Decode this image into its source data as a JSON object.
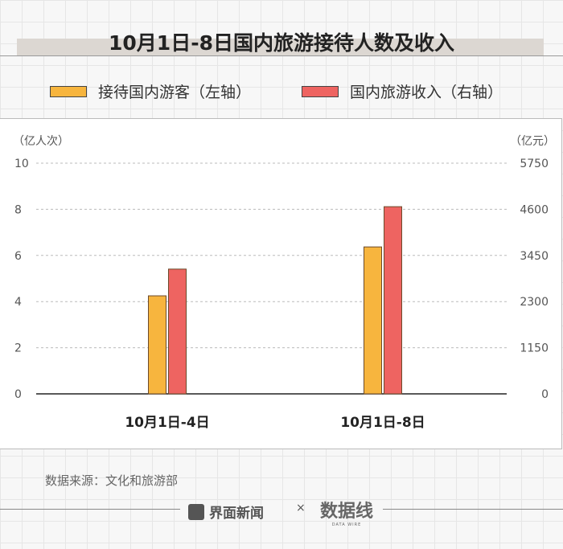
{
  "title": "10月1日-8日国内旅游接待人数及收入",
  "source": "数据来源：文化和旅游部",
  "footer": {
    "brand1": "界面新闻",
    "separator": "×",
    "brand2": "数据线",
    "brand2_sub": "DATA WIRE"
  },
  "chart_data": {
    "type": "bar",
    "title": "10月1日-8日国内旅游接待人数及收入",
    "categories": [
      "10月1日-4日",
      "10月1日-8日"
    ],
    "series": [
      {
        "name": "接待国内游客（左轴）",
        "axis": "left",
        "color": "#f7b53e",
        "values": [
          4.25,
          6.37
        ]
      },
      {
        "name": "国内旅游收入（右轴）",
        "axis": "right",
        "color": "#ee6461",
        "values": [
          3110,
          4665.6
        ]
      }
    ],
    "y_left": {
      "label": "（亿人次）",
      "range": [
        0,
        10
      ],
      "ticks": [
        0,
        2,
        4,
        6,
        8,
        10
      ]
    },
    "y_right": {
      "label": "（亿元）",
      "range": [
        0,
        5750
      ],
      "ticks": [
        0,
        1150,
        2300,
        3450,
        4600,
        5750
      ]
    },
    "grid": true,
    "legend_placement": "top"
  }
}
